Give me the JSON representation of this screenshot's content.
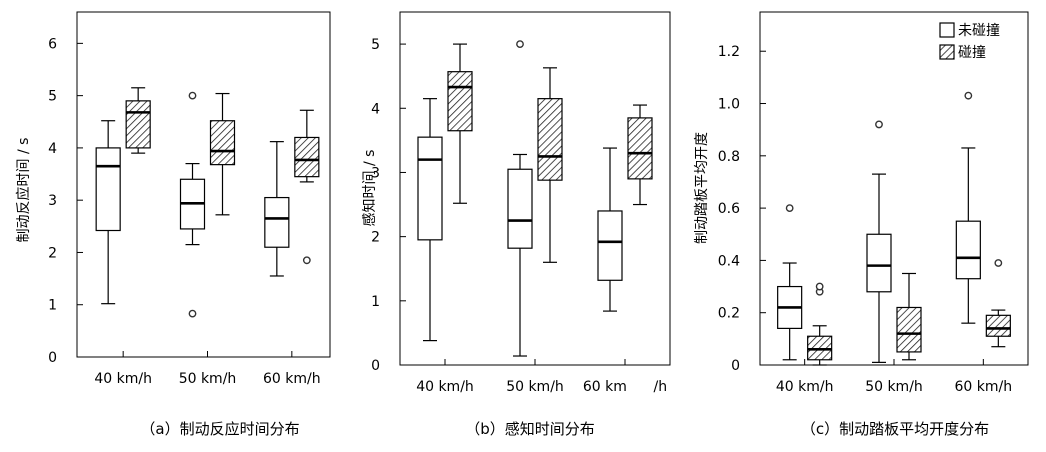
{
  "chart_data": [
    {
      "type": "boxplot",
      "title": "",
      "caption": "（a）制动反应时间分布",
      "xlabel": "",
      "ylabel": "制动反应时间 / s",
      "ylim": [
        0,
        6.6
      ],
      "yticks": [
        0,
        1,
        2,
        3,
        4,
        5,
        6
      ],
      "ytick_labels": [
        "0",
        "1",
        "2",
        "3",
        "4",
        "5",
        "6"
      ],
      "tick_decimals": 0,
      "categories": [
        "40 km/h",
        "50 km/h",
        "60 km/h"
      ],
      "series": [
        {
          "name": "未碰撞",
          "fill": "white",
          "boxes": [
            {
              "min": 1.02,
              "q1": 2.42,
              "median": 3.65,
              "q3": 4.0,
              "max": 4.52,
              "outliers": []
            },
            {
              "min": 2.15,
              "q1": 2.45,
              "median": 2.94,
              "q3": 3.4,
              "max": 3.7,
              "outliers": [
                5.0,
                0.83
              ]
            },
            {
              "min": 1.55,
              "q1": 2.1,
              "median": 2.65,
              "q3": 3.05,
              "max": 4.12,
              "outliers": []
            }
          ]
        },
        {
          "name": "碰撞",
          "fill": "hatch",
          "boxes": [
            {
              "min": 3.9,
              "q1": 4.0,
              "median": 4.68,
              "q3": 4.9,
              "max": 5.15,
              "outliers": []
            },
            {
              "min": 2.72,
              "q1": 3.68,
              "median": 3.94,
              "q3": 4.52,
              "max": 5.04,
              "outliers": []
            },
            {
              "min": 3.35,
              "q1": 3.45,
              "median": 3.77,
              "q3": 4.2,
              "max": 4.72,
              "outliers": [
                1.85
              ]
            }
          ]
        }
      ]
    },
    {
      "type": "boxplot",
      "title": "",
      "caption": "（b）感知时间分布",
      "xlabel": "",
      "ylabel": "感知时间 / s",
      "ylim": [
        0,
        5.5
      ],
      "yticks": [
        0,
        1,
        2,
        3,
        4,
        5
      ],
      "ytick_labels": [
        "0",
        "1",
        "2",
        "3",
        "4",
        "5"
      ],
      "tick_decimals": 0,
      "categories": [
        "40 km/h",
        "50 km/h",
        "60 km      /h"
      ],
      "series": [
        {
          "name": "未碰撞",
          "fill": "white",
          "boxes": [
            {
              "min": 0.38,
              "q1": 1.95,
              "median": 3.2,
              "q3": 3.55,
              "max": 4.15,
              "outliers": []
            },
            {
              "min": 0.14,
              "q1": 1.82,
              "median": 2.25,
              "q3": 3.05,
              "max": 3.28,
              "outliers": [
                5.0
              ]
            },
            {
              "min": 0.84,
              "q1": 1.32,
              "median": 1.92,
              "q3": 2.4,
              "max": 3.38,
              "outliers": []
            }
          ]
        },
        {
          "name": "碰撞",
          "fill": "hatch",
          "boxes": [
            {
              "min": 2.52,
              "q1": 3.65,
              "median": 4.33,
              "q3": 4.57,
              "max": 5.0,
              "outliers": []
            },
            {
              "min": 1.6,
              "q1": 2.88,
              "median": 3.25,
              "q3": 4.15,
              "max": 4.63,
              "outliers": []
            },
            {
              "min": 2.5,
              "q1": 2.9,
              "median": 3.3,
              "q3": 3.85,
              "max": 4.05,
              "outliers": []
            }
          ]
        }
      ]
    },
    {
      "type": "boxplot",
      "title": "",
      "caption": "（c）制动踏板平均开度分布",
      "xlabel": "",
      "ylabel": "制动踏板平均开度",
      "ylim": [
        0,
        1.35
      ],
      "yticks": [
        0,
        0.2,
        0.4,
        0.6,
        0.8,
        1.0,
        1.2
      ],
      "ytick_labels": [
        "0",
        "0.2",
        "0.4",
        "0.6",
        "0.8",
        "1.0",
        "1.2"
      ],
      "tick_decimals": 1,
      "categories": [
        "40 km/h",
        "50 km/h",
        "60 km/h"
      ],
      "legend": {
        "position": "top-right",
        "entries": [
          "未碰撞",
          "碰撞"
        ]
      },
      "series": [
        {
          "name": "未碰撞",
          "fill": "white",
          "boxes": [
            {
              "min": 0.02,
              "q1": 0.14,
              "median": 0.22,
              "q3": 0.3,
              "max": 0.39,
              "outliers": [
                0.6
              ]
            },
            {
              "min": 0.01,
              "q1": 0.28,
              "median": 0.38,
              "q3": 0.5,
              "max": 0.73,
              "outliers": [
                0.92
              ]
            },
            {
              "min": 0.16,
              "q1": 0.33,
              "median": 0.41,
              "q3": 0.55,
              "max": 0.83,
              "outliers": [
                1.03
              ]
            }
          ]
        },
        {
          "name": "碰撞",
          "fill": "hatch",
          "boxes": [
            {
              "min": 0.0,
              "q1": 0.02,
              "median": 0.06,
              "q3": 0.11,
              "max": 0.15,
              "outliers": [
                0.28,
                0.3
              ]
            },
            {
              "min": 0.02,
              "q1": 0.05,
              "median": 0.12,
              "q3": 0.22,
              "max": 0.35,
              "outliers": []
            },
            {
              "min": 0.07,
              "q1": 0.11,
              "median": 0.14,
              "q3": 0.19,
              "max": 0.21,
              "outliers": [
                0.39
              ]
            }
          ]
        }
      ]
    }
  ]
}
